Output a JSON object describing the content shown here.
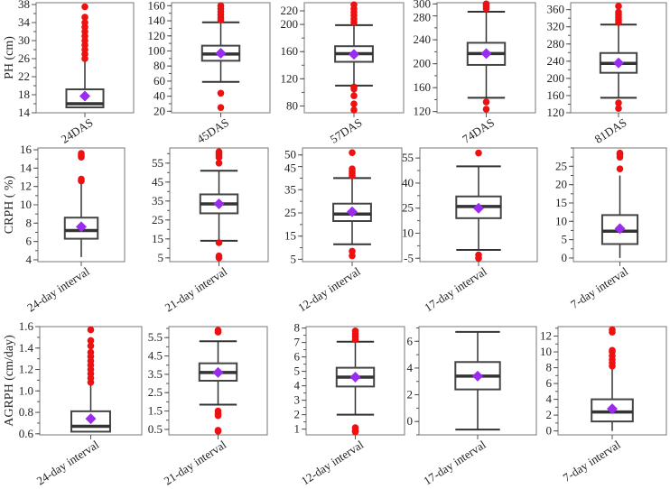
{
  "colors": {
    "outlier": "#ee1111",
    "mean": "#9a2cf0",
    "box": "#444444",
    "frame": "#777777"
  },
  "chart_data": [
    {
      "type": "box",
      "row": "PH (cm)",
      "category": "24DAS",
      "ylim": [
        14,
        38.4
      ],
      "ticks": [
        14,
        18,
        22,
        26,
        30,
        34,
        38
      ],
      "stats": {
        "whisker_low": 15,
        "q1": 15.2,
        "median": 16,
        "q3": 19.2,
        "whisker_high": 25.5,
        "mean": 17.7
      },
      "outliers": [
        26,
        27,
        28,
        29,
        30,
        31,
        32,
        33,
        34,
        35.2,
        37.5
      ]
    },
    {
      "type": "box",
      "row": "PH (cm)",
      "category": "45DAS",
      "ylim": [
        18,
        164
      ],
      "ticks": [
        20,
        40,
        60,
        80,
        100,
        120,
        140,
        160
      ],
      "stats": {
        "whisker_low": 59,
        "q1": 87,
        "median": 96,
        "q3": 107,
        "whisker_high": 138,
        "mean": 97
      },
      "outliers": [
        141,
        144,
        148,
        152,
        156,
        160,
        44,
        25
      ]
    },
    {
      "type": "box",
      "row": "PH (cm)",
      "category": "57DAS",
      "ylim": [
        70,
        232
      ],
      "ticks": [
        80,
        120,
        160,
        200,
        220
      ],
      "stats": {
        "whisker_low": 110,
        "q1": 145,
        "median": 157,
        "q3": 168,
        "whisker_high": 199,
        "mean": 156
      },
      "outliers": [
        203,
        208,
        213,
        218,
        223,
        229,
        108,
        105,
        95,
        83,
        74
      ]
    },
    {
      "type": "box",
      "row": "PH (cm)",
      "category": "74DAS",
      "ylim": [
        118,
        302
      ],
      "ticks": [
        120,
        160,
        200,
        240,
        280,
        300
      ],
      "stats": {
        "whisker_low": 143,
        "q1": 198,
        "median": 217,
        "q3": 235,
        "whisker_high": 287,
        "mean": 217
      },
      "outliers": [
        292,
        295,
        298,
        300,
        136,
        124
      ]
    },
    {
      "type": "box",
      "row": "PH (cm)",
      "category": "81DAS",
      "ylim": [
        120,
        376
      ],
      "ticks": [
        120,
        160,
        200,
        240,
        280,
        320,
        360
      ],
      "stats": {
        "whisker_low": 155,
        "q1": 213,
        "median": 235,
        "q3": 259,
        "whisker_high": 325,
        "mean": 236
      },
      "outliers": [
        330,
        336,
        342,
        348,
        354,
        368,
        143,
        130
      ]
    },
    {
      "type": "box",
      "row": "CRPH ( %)",
      "category": "24-day interval",
      "ylim": [
        3.8,
        16.2
      ],
      "ticks": [
        4,
        6,
        8,
        10,
        12,
        14,
        16
      ],
      "stats": {
        "whisker_low": 4.3,
        "q1": 6.3,
        "median": 7.2,
        "q3": 8.6,
        "whisker_high": 12.4,
        "mean": 7.6
      },
      "outliers": [
        12.6,
        12.8,
        15.2,
        15.4,
        15.6
      ]
    },
    {
      "type": "box",
      "row": "CRPH ( %)",
      "category": "21-day interval",
      "ylim": [
        3,
        63
      ],
      "ticks": [
        5,
        15,
        25,
        35,
        45,
        55
      ],
      "stats": {
        "whisker_low": 14,
        "q1": 28.5,
        "median": 33.5,
        "q3": 38.5,
        "whisker_high": 51,
        "mean": 33.5
      },
      "outliers": [
        55,
        58,
        59,
        60,
        61,
        13,
        6,
        5
      ]
    },
    {
      "type": "box",
      "row": "CRPH ( %)",
      "category": "12-day interval",
      "ylim": [
        4,
        53
      ],
      "ticks": [
        5,
        15,
        25,
        35,
        45,
        50
      ],
      "stats": {
        "whisker_low": 11.5,
        "q1": 21.5,
        "median": 24.5,
        "q3": 29,
        "whisker_high": 40,
        "mean": 25.5
      },
      "outliers": [
        41,
        42,
        43,
        44,
        51,
        8.5,
        6.5
      ]
    },
    {
      "type": "box",
      "row": "CRPH ( %)",
      "category": "17-day interval",
      "ylim": [
        -7,
        61
      ],
      "ticks": [
        -5,
        10,
        25,
        40,
        55
      ],
      "stats": {
        "whisker_low": 0,
        "q1": 19,
        "median": 26,
        "q3": 32,
        "whisker_high": 50,
        "mean": 25
      },
      "outliers": [
        58,
        -3,
        -5
      ]
    },
    {
      "type": "box",
      "row": "CRPH ( %)",
      "category": "7-day interval",
      "ylim": [
        -1,
        30
      ],
      "ticks": [
        0,
        5,
        10,
        15,
        20,
        25
      ],
      "stats": {
        "whisker_low": 0,
        "q1": 3.8,
        "median": 7.3,
        "q3": 11.7,
        "whisker_high": 22.5,
        "mean": 8
      },
      "outliers": [
        24.3,
        27.5,
        28.2,
        28.6
      ]
    },
    {
      "type": "box",
      "row": "AGRPH (cm/day)",
      "category": "24-day interval",
      "ylim": [
        0.59,
        1.6
      ],
      "ticks": [
        0.6,
        0.8,
        1.0,
        1.2,
        1.4,
        1.6
      ],
      "tick_labels": [
        "0.6",
        "0.8",
        "1.0",
        "1.2",
        "1.4",
        "1.6"
      ],
      "stats": {
        "whisker_low": 0.62,
        "q1": 0.62,
        "median": 0.67,
        "q3": 0.81,
        "whisker_high": 1.06,
        "mean": 0.74
      },
      "outliers": [
        1.08,
        1.12,
        1.16,
        1.2,
        1.24,
        1.28,
        1.32,
        1.36,
        1.42,
        1.47,
        1.57
      ]
    },
    {
      "type": "box",
      "row": "AGRPH (cm/day)",
      "category": "21-day interval",
      "ylim": [
        0.2,
        6.1
      ],
      "ticks": [
        0.5,
        1.5,
        2.5,
        3.5,
        4.5,
        5.5
      ],
      "stats": {
        "whisker_low": 1.85,
        "q1": 3.15,
        "median": 3.6,
        "q3": 4.1,
        "whisker_high": 5.3,
        "mean": 3.6
      },
      "outliers": [
        5.8,
        5.9,
        1.5,
        1.35,
        1.25,
        0.45,
        0.4
      ]
    },
    {
      "type": "box",
      "row": "AGRPH (cm/day)",
      "category": "12-day interval",
      "ylim": [
        0.6,
        8.1
      ],
      "ticks": [
        1,
        2,
        3,
        4,
        5,
        6,
        7,
        8
      ],
      "stats": {
        "whisker_low": 2,
        "q1": 3.95,
        "median": 4.6,
        "q3": 5.25,
        "whisker_high": 7.05,
        "mean": 4.6
      },
      "outliers": [
        7.2,
        7.4,
        7.6,
        7.8,
        1.1,
        0.9,
        0.8
      ]
    },
    {
      "type": "box",
      "row": "AGRPH (cm/day)",
      "category": "17-day interval",
      "ylim": [
        -1,
        7.1
      ],
      "ticks": [
        0,
        2,
        4,
        6
      ],
      "stats": {
        "whisker_low": -0.6,
        "q1": 2.4,
        "median": 3.4,
        "q3": 4.45,
        "whisker_high": 6.7,
        "mean": 3.4
      },
      "outliers": []
    },
    {
      "type": "box",
      "row": "AGRPH (cm/day)",
      "category": "7-day interval",
      "ylim": [
        -0.5,
        13.2
      ],
      "ticks": [
        0,
        2,
        4,
        6,
        8,
        10,
        12
      ],
      "stats": {
        "whisker_low": 0,
        "q1": 1.2,
        "median": 2.4,
        "q3": 4,
        "whisker_high": 7.9,
        "mean": 2.8
      },
      "outliers": [
        8.2,
        8.6,
        9,
        9.5,
        10,
        10.2,
        12.5,
        12.8
      ]
    }
  ],
  "row_labels": [
    "PH (cm)",
    "CRPH ( %)",
    "AGRPH (cm/day)"
  ]
}
